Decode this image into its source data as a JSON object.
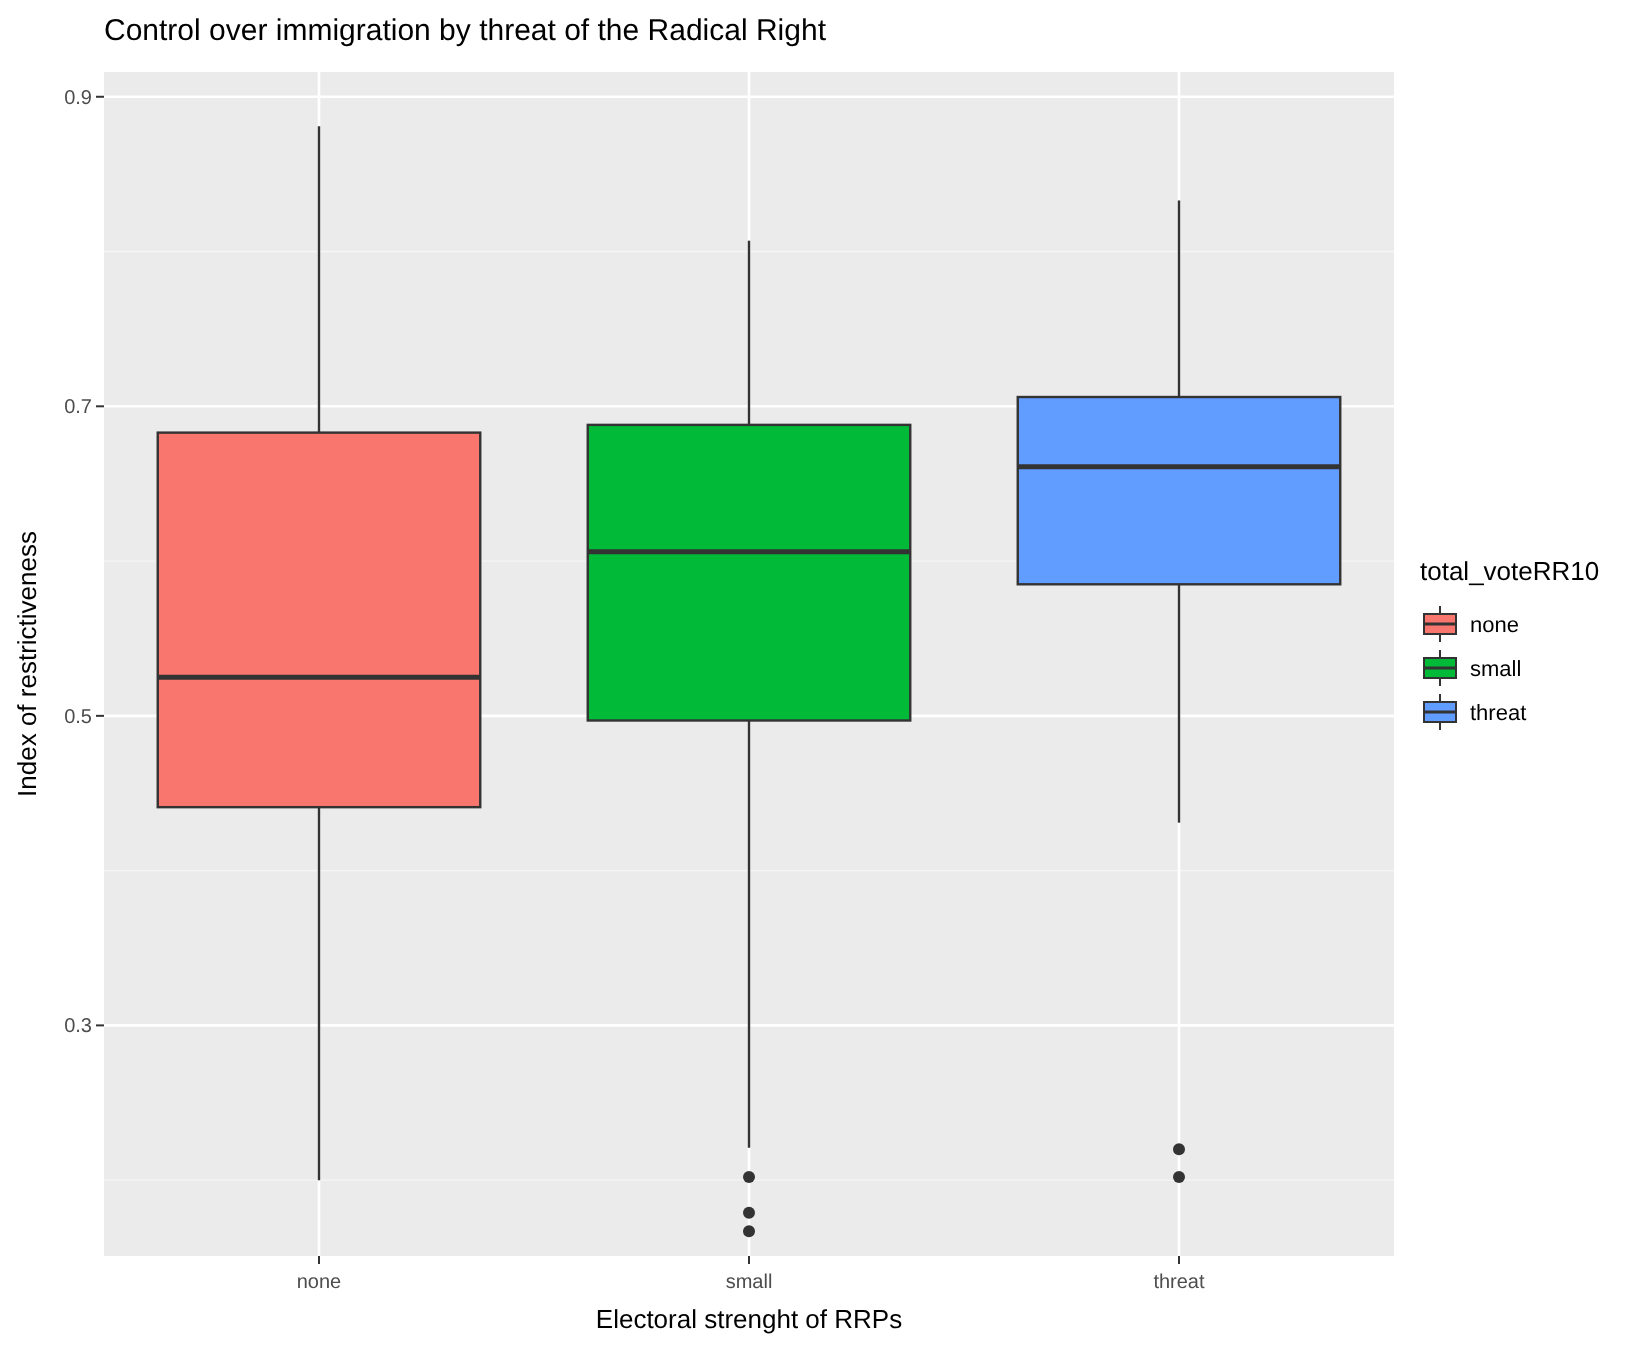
{
  "chart_data": {
    "type": "box",
    "title": "Control over immigration by threat of the Radical Right",
    "xlabel": "Electoral strenght of RRPs",
    "ylabel": "Index of restrictiveness",
    "legend_title": "total_voteRR10",
    "categories": [
      "none",
      "small",
      "threat"
    ],
    "series": [
      {
        "name": "none",
        "color": "#f8766d",
        "boxes": [
          {
            "low": 0.2,
            "q1": 0.441,
            "median": 0.525,
            "q3": 0.683,
            "high": 0.881
          },
          null,
          null
        ]
      },
      {
        "name": "small",
        "color": "#00ba38",
        "boxes": [
          null,
          {
            "low": 0.221,
            "q1": 0.497,
            "median": 0.606,
            "q3": 0.688,
            "high": 0.807,
            "outliers": [
              0.202,
              0.179,
              0.167
            ]
          },
          null
        ]
      },
      {
        "name": "threat",
        "color": "#619cff",
        "boxes": [
          null,
          null,
          {
            "low": 0.431,
            "q1": 0.585,
            "median": 0.661,
            "q3": 0.706,
            "high": 0.833,
            "outliers": [
              0.22,
              0.202
            ]
          }
        ]
      }
    ],
    "ylim": [
      0.151,
      0.916
    ],
    "yticks": [
      0.3,
      0.5,
      0.7,
      0.9
    ],
    "grid": true,
    "legend": "right"
  }
}
